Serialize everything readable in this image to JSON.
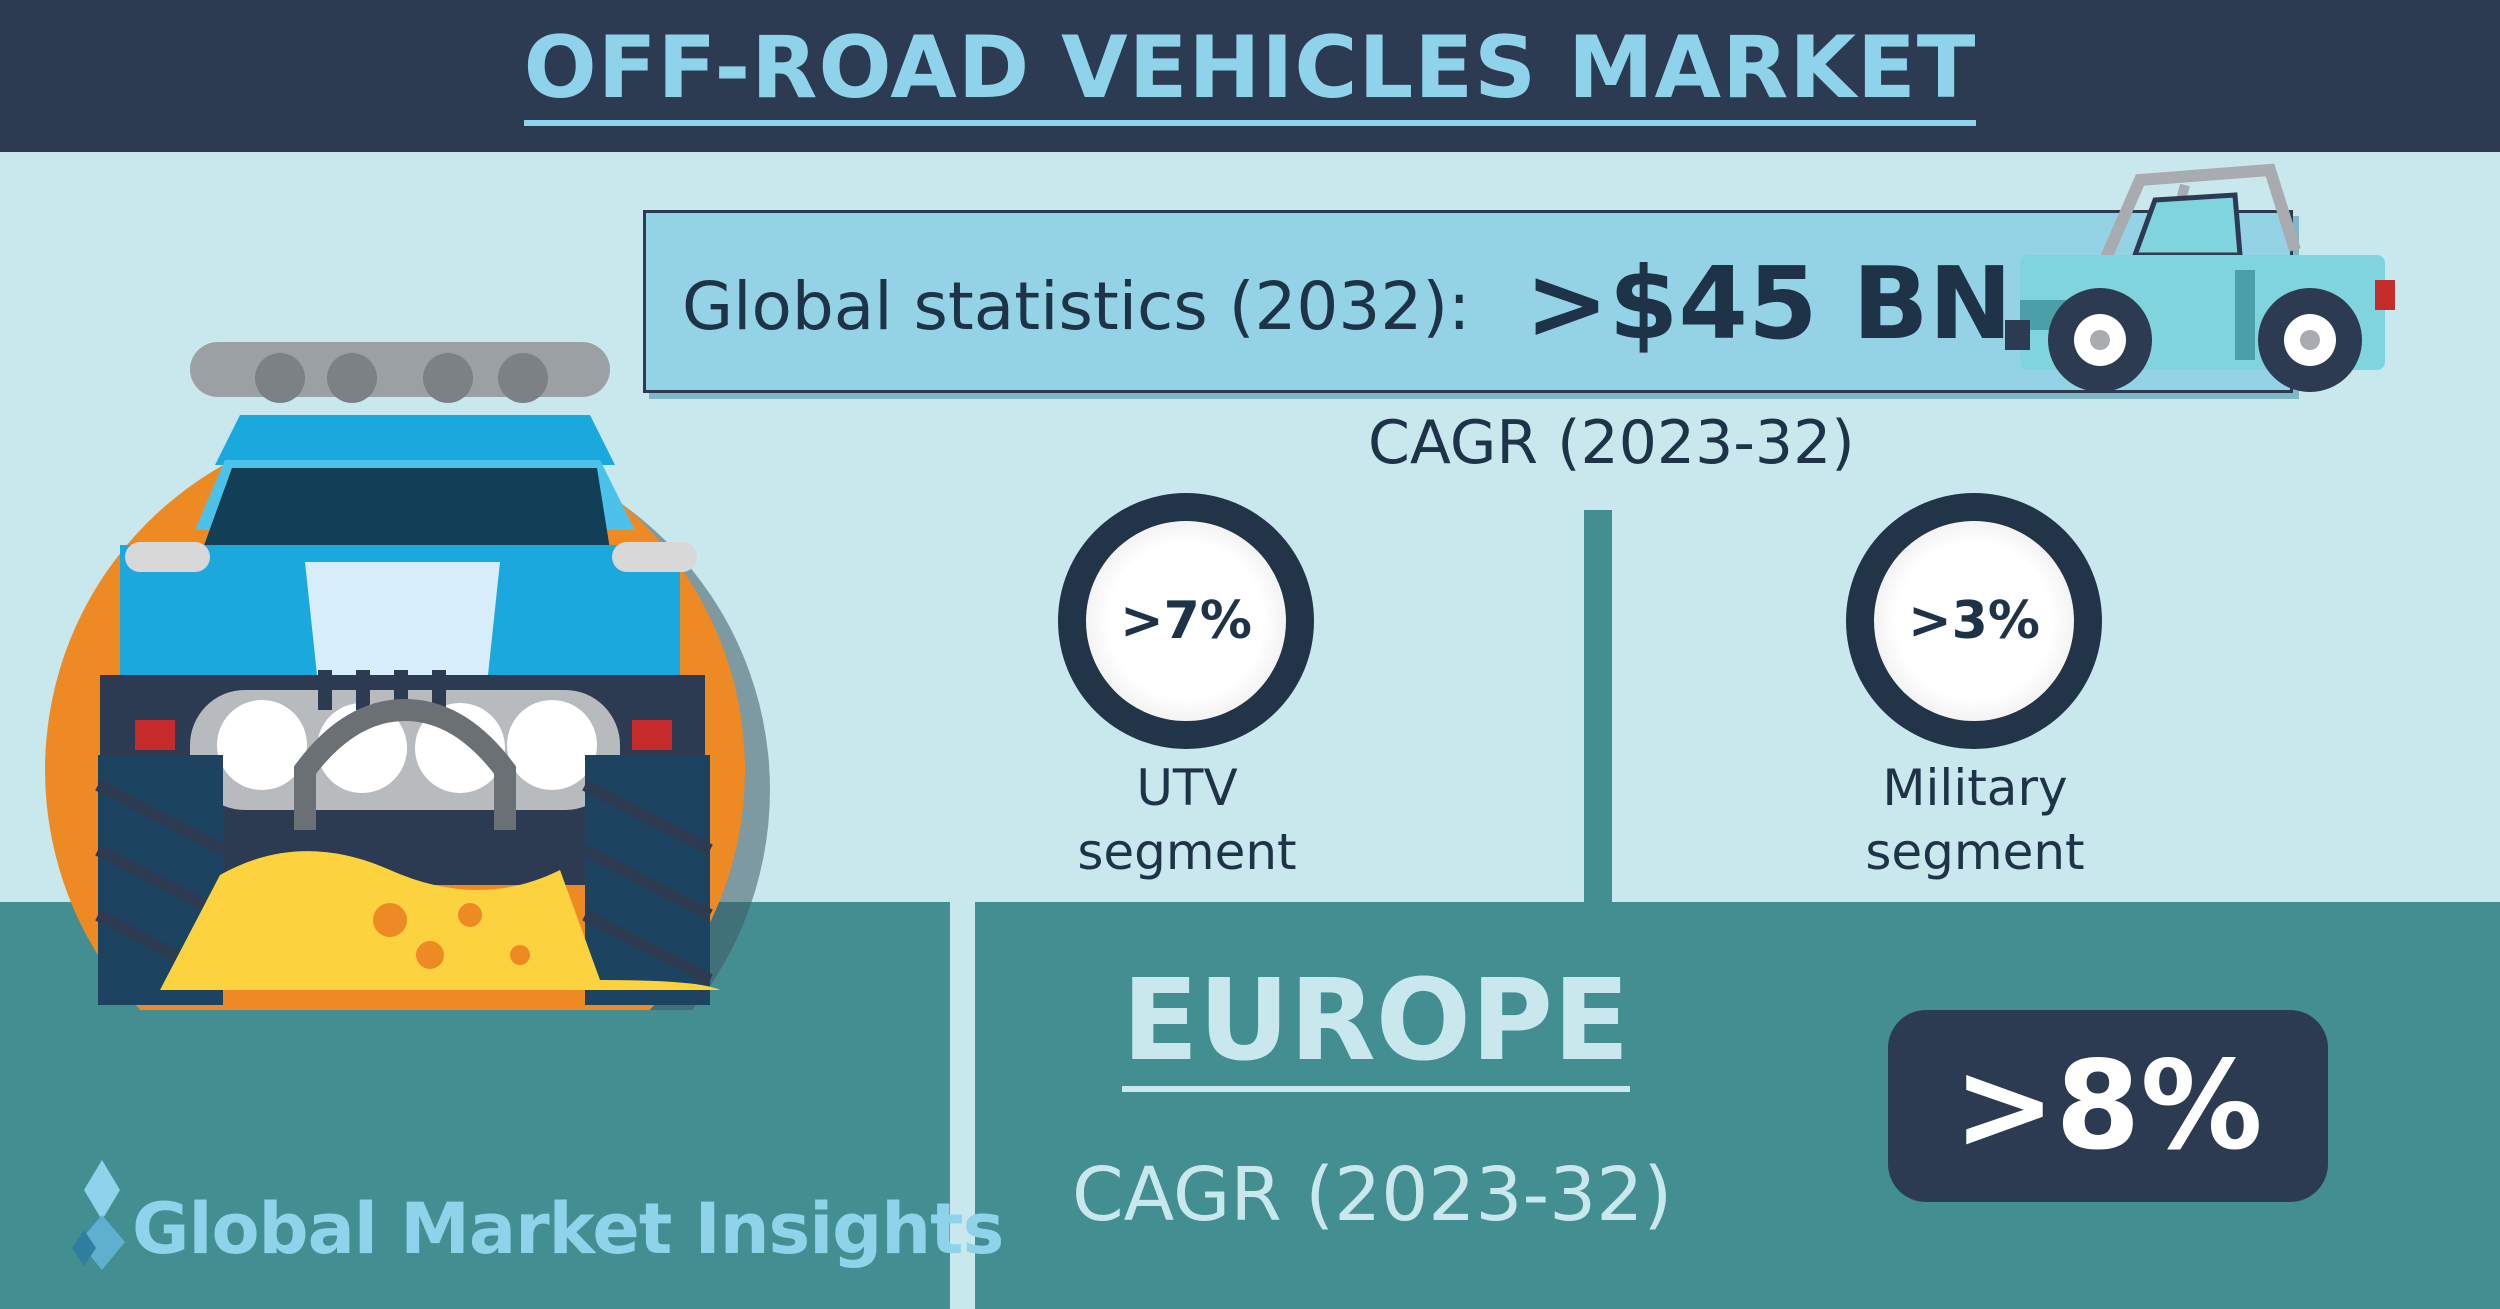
{
  "header": {
    "title": "OFF-ROAD VEHICLES MARKET"
  },
  "global_stat": {
    "label": "Global statistics (2032):",
    "value": ">$45 BN"
  },
  "cagr_label": "CAGR (2023-32)",
  "segments": [
    {
      "value": ">7%",
      "line1": "UTV",
      "line2": "segment"
    },
    {
      "value": ">3%",
      "line1": "Military",
      "line2": "segment"
    }
  ],
  "region": {
    "name": "EUROPE",
    "cagr_label": "CAGR (2023-32)",
    "value": ">8%"
  },
  "brand": {
    "name": "Global Market Insights"
  },
  "colors": {
    "navy": "#2c3a52",
    "teal": "#438e91",
    "light": "#c9e8ee",
    "sky": "#94d2e6",
    "orange": "#ee8a24",
    "yellow": "#fdd23f",
    "car_blue": "#1ba9dd"
  }
}
